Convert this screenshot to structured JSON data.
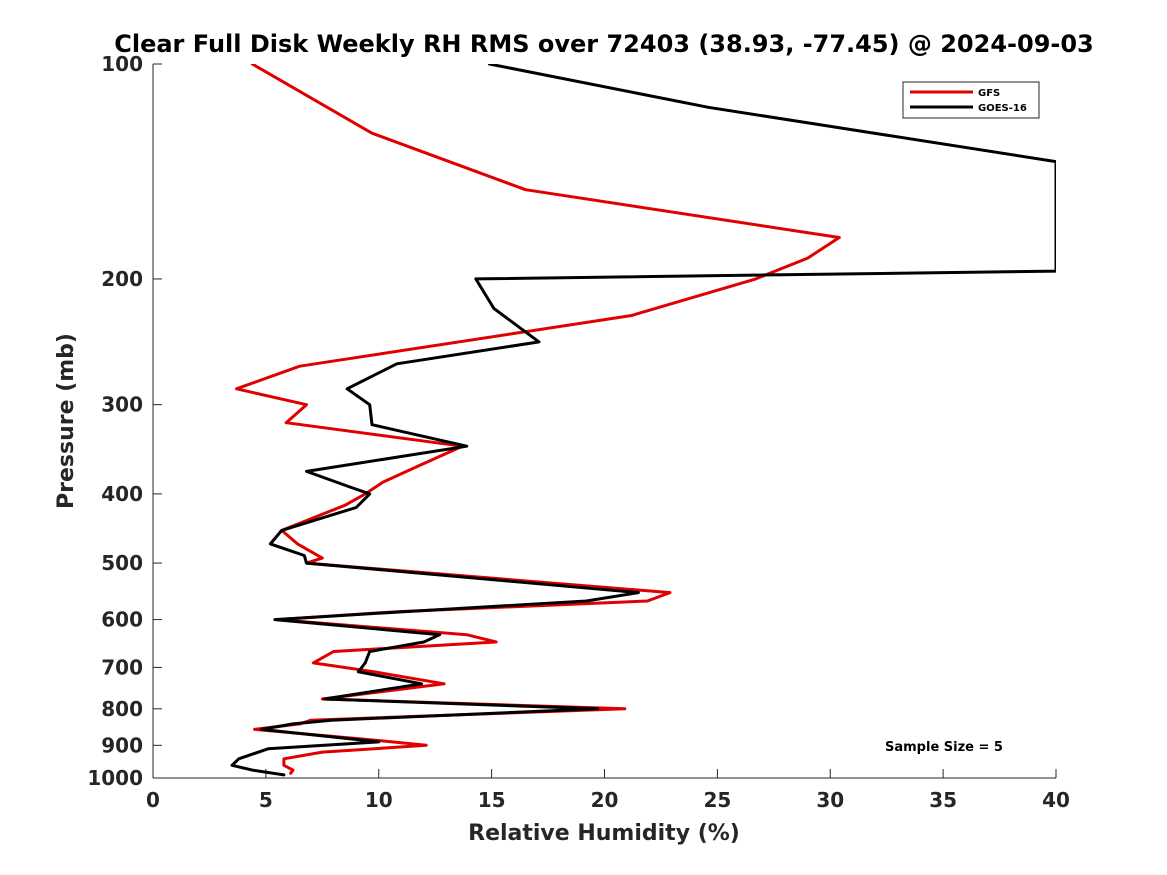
{
  "chart_data": {
    "type": "line",
    "title": "Clear Full Disk Weekly RH RMS over 72403 (38.93, -77.45) @ 2024-09-03",
    "xlabel": "Relative Humidity (%)",
    "ylabel": "Pressure (mb)",
    "xlim": [
      0,
      40
    ],
    "ylim": [
      100,
      1000
    ],
    "y_scale": "log",
    "y_reversed": true,
    "x_ticks": [
      "0",
      "5",
      "10",
      "15",
      "20",
      "25",
      "30",
      "35",
      "40"
    ],
    "y_ticks": [
      "100",
      "200",
      "300",
      "400",
      "500",
      "600",
      "700",
      "800",
      "900",
      "1000"
    ],
    "grid": false,
    "legend_position": "top-right",
    "annotation": "Sample Size = 5",
    "series": [
      {
        "name": "GFS",
        "color": "#e00000",
        "points": [
          [
            4.4,
            100
          ],
          [
            9.7,
            125
          ],
          [
            16.5,
            150
          ],
          [
            30.4,
            175
          ],
          [
            29.0,
            187
          ],
          [
            26.7,
            200
          ],
          [
            21.2,
            225
          ],
          [
            6.5,
            265
          ],
          [
            3.7,
            285
          ],
          [
            6.8,
            300
          ],
          [
            5.9,
            318
          ],
          [
            13.7,
            343
          ],
          [
            11.8,
            365
          ],
          [
            10.2,
            385
          ],
          [
            9.4,
            400
          ],
          [
            8.5,
            415
          ],
          [
            5.7,
            450
          ],
          [
            6.4,
            470
          ],
          [
            7.5,
            492
          ],
          [
            6.8,
            500
          ],
          [
            22.9,
            550
          ],
          [
            21.9,
            565
          ],
          [
            10.8,
            585
          ],
          [
            5.5,
            600
          ],
          [
            13.9,
            630
          ],
          [
            15.2,
            645
          ],
          [
            8.0,
            665
          ],
          [
            7.1,
            690
          ],
          [
            9.8,
            710
          ],
          [
            12.9,
            738
          ],
          [
            7.5,
            775
          ],
          [
            20.9,
            800
          ],
          [
            7.0,
            830
          ],
          [
            6.5,
            840
          ],
          [
            4.5,
            855
          ],
          [
            9.8,
            885
          ],
          [
            12.1,
            900
          ],
          [
            7.5,
            920
          ],
          [
            5.8,
            940
          ],
          [
            5.8,
            960
          ],
          [
            6.2,
            975
          ],
          [
            6.1,
            985
          ]
        ]
      },
      {
        "name": "GOES-16",
        "color": "#000000",
        "points": [
          [
            14.9,
            100
          ],
          [
            24.6,
            115
          ],
          [
            40.0,
            137
          ],
          [
            40.0,
            195
          ],
          [
            14.3,
            200
          ],
          [
            15.1,
            220
          ],
          [
            17.1,
            245
          ],
          [
            10.8,
            263
          ],
          [
            8.6,
            285
          ],
          [
            9.6,
            300
          ],
          [
            9.7,
            320
          ],
          [
            13.9,
            343
          ],
          [
            6.8,
            372
          ],
          [
            8.8,
            392
          ],
          [
            9.6,
            400
          ],
          [
            9.0,
            418
          ],
          [
            5.7,
            450
          ],
          [
            5.2,
            470
          ],
          [
            6.7,
            488
          ],
          [
            6.8,
            500
          ],
          [
            21.5,
            550
          ],
          [
            19.2,
            565
          ],
          [
            11.1,
            585
          ],
          [
            5.4,
            600
          ],
          [
            12.7,
            630
          ],
          [
            12.0,
            645
          ],
          [
            9.6,
            665
          ],
          [
            9.4,
            690
          ],
          [
            9.1,
            710
          ],
          [
            11.9,
            738
          ],
          [
            7.6,
            775
          ],
          [
            19.7,
            800
          ],
          [
            7.9,
            830
          ],
          [
            6.2,
            840
          ],
          [
            4.8,
            855
          ],
          [
            10.0,
            890
          ],
          [
            5.1,
            910
          ],
          [
            3.8,
            940
          ],
          [
            3.5,
            960
          ],
          [
            4.4,
            975
          ],
          [
            5.8,
            990
          ]
        ]
      }
    ]
  }
}
